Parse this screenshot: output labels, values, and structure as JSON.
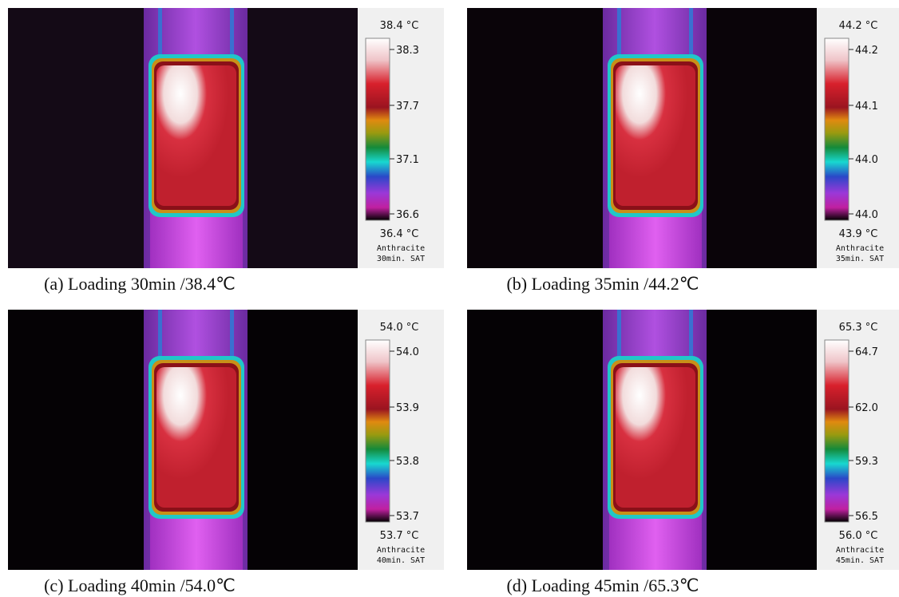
{
  "panels": [
    {
      "max_label": "38.4 °C",
      "ticks": [
        "38.3",
        "37.7",
        "37.1",
        "36.6"
      ],
      "min_label": "36.4 °C",
      "material": "Anthracite",
      "sample": "30min. SAT",
      "caption": "(a)  Loading 30min /38.4℃"
    },
    {
      "max_label": "44.2 °C",
      "ticks": [
        "44.2",
        "44.1",
        "44.0",
        "44.0"
      ],
      "min_label": "43.9 °C",
      "material": "Anthracite",
      "sample": "35min. SAT",
      "caption": "(b)  Loading 35min /44.2℃"
    },
    {
      "max_label": "54.0 °C",
      "ticks": [
        "54.0",
        "53.9",
        "53.8",
        "53.7"
      ],
      "min_label": "53.7 °C",
      "material": "Anthracite",
      "sample": "40min. SAT",
      "caption": "(c)   Loading 40min /54.0℃"
    },
    {
      "max_label": "65.3 °C",
      "ticks": [
        "64.7",
        "62.0",
        "59.3",
        "56.5"
      ],
      "min_label": "56.0 °C",
      "material": "Anthracite",
      "sample": "45min. SAT",
      "caption": "(d)  Loading 45min /65.3℃"
    }
  ]
}
